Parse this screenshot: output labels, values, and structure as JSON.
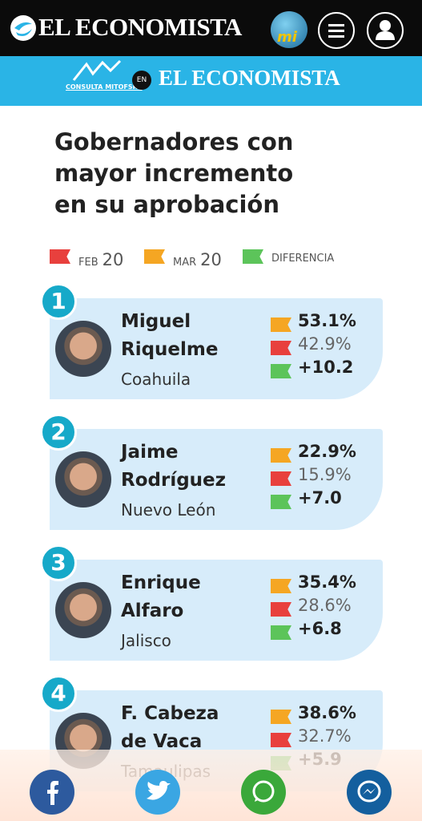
{
  "header": {
    "logo": "EL ECONOMISTA",
    "badge": "mi"
  },
  "banner": {
    "partner": "CONSULTA MITOFSKY",
    "joiner": "EN",
    "brand": "EL ECONOMISTA"
  },
  "infographic": {
    "title_lines": [
      "Gobernadores con",
      "mayor incremento",
      "en su aprobación"
    ],
    "legend": [
      {
        "month": "FEB",
        "year": "20"
      },
      {
        "month": "MAR",
        "year": "20"
      },
      {
        "month": "DIFERENCIA"
      }
    ],
    "cards": [
      {
        "rank": "1",
        "name": [
          "Miguel",
          "Riquelme"
        ],
        "state": "Coahuila",
        "mar": "53.1%",
        "feb": "42.9%",
        "diff": "+10.2"
      },
      {
        "rank": "2",
        "name": [
          "Jaime",
          "Rodríguez"
        ],
        "state": "Nuevo León",
        "mar": "22.9%",
        "feb": "15.9%",
        "diff": "+7.0"
      },
      {
        "rank": "3",
        "name": [
          "Enrique",
          "Alfaro"
        ],
        "state": "Jalisco",
        "mar": "35.4%",
        "feb": "28.6%",
        "diff": "+6.8"
      },
      {
        "rank": "4",
        "name": [
          "F. Cabeza",
          "de Vaca"
        ],
        "state": "Tamaulipas",
        "mar": "38.6%",
        "feb": "32.7%",
        "diff": "+5.9"
      }
    ]
  }
}
